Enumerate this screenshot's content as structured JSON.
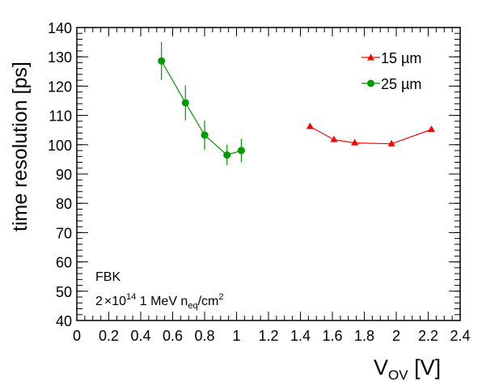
{
  "chart_data": {
    "type": "scatter",
    "title": "",
    "xlabel": {
      "main": "V",
      "sub": "OV",
      "tail": " [V]"
    },
    "ylabel": "time resolution [ps]",
    "xlim": [
      0,
      2.4
    ],
    "ylim": [
      40,
      140
    ],
    "x_ticks": [
      "0",
      "0.2",
      "0.4",
      "0.6",
      "0.8",
      "1",
      "1.2",
      "1.4",
      "1.6",
      "1.8",
      "2",
      "2.2",
      "2.4"
    ],
    "y_ticks": [
      "40",
      "50",
      "60",
      "70",
      "80",
      "90",
      "100",
      "110",
      "120",
      "130",
      "140"
    ],
    "grid": false,
    "legend_position": "top-right",
    "series": [
      {
        "name": "15 µm",
        "color": "#ff0000",
        "marker": "triangle",
        "x": [
          1.46,
          1.61,
          1.74,
          1.97,
          2.22
        ],
        "y": [
          106.2,
          101.7,
          100.6,
          100.3,
          105.2
        ],
        "err": [
          0.9,
          0.9,
          0.9,
          0.9,
          0.9
        ]
      },
      {
        "name": "25 µm",
        "color": "#009900",
        "marker": "circle",
        "x": [
          0.53,
          0.68,
          0.8,
          0.94,
          1.03
        ],
        "y": [
          128.6,
          114.3,
          103.3,
          96.5,
          98.0
        ],
        "err": [
          6.5,
          6.0,
          5.0,
          3.5,
          4.0
        ]
      }
    ],
    "annotations": {
      "line1": "FBK",
      "line2_a": "2",
      "line2_times": "×",
      "line2_b": "10",
      "line2_exp": "14",
      "line2_c": " 1 MeV n",
      "line2_sub": "eq",
      "line2_d": "/cm",
      "line2_exp2": "2"
    }
  }
}
